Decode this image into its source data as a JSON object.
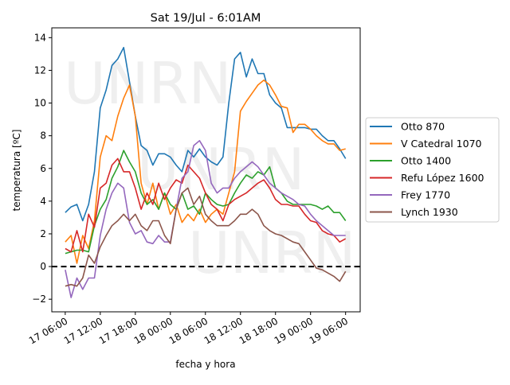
{
  "chart_data": {
    "type": "line",
    "title": "Sat 19/Jul - 6:01AM",
    "xlabel": "fecha y hora",
    "ylabel": "temperatura [ºC]",
    "watermark": "UNRN",
    "x_unit": "hours since 17 06:00",
    "xlim": [
      -2.3,
      50.5
    ],
    "ylim": [
      -2.77,
      14.6
    ],
    "x_ticks": [
      {
        "value": 0,
        "label": "17 06:00"
      },
      {
        "value": 6,
        "label": "17 12:00"
      },
      {
        "value": 12,
        "label": "17 18:00"
      },
      {
        "value": 18,
        "label": "18 00:00"
      },
      {
        "value": 24,
        "label": "18 06:00"
      },
      {
        "value": 30,
        "label": "18 12:00"
      },
      {
        "value": 36,
        "label": "18 18:00"
      },
      {
        "value": 42,
        "label": "19 00:00"
      },
      {
        "value": 48,
        "label": "19 06:00"
      }
    ],
    "y_ticks": [
      -2,
      0,
      2,
      4,
      6,
      8,
      10,
      12,
      14
    ],
    "reference_line": {
      "y": 0,
      "style": "dashed",
      "color": "#000000"
    },
    "grid": false,
    "legend_placement": "right-outside",
    "x": [
      0,
      1,
      2,
      3,
      4,
      5,
      6,
      7,
      8,
      9,
      10,
      11,
      12,
      13,
      14,
      15,
      16,
      17,
      18,
      19,
      20,
      21,
      22,
      23,
      24,
      25,
      26,
      27,
      28,
      29,
      30,
      31,
      32,
      33,
      34,
      35,
      36,
      37,
      38,
      39,
      40,
      41,
      42,
      43,
      44,
      45,
      46,
      47,
      48
    ],
    "series": [
      {
        "name": "Otto 870",
        "color": "#1f77b4",
        "values": [
          3.3,
          3.65,
          3.8,
          2.8,
          3.8,
          5.8,
          9.7,
          10.8,
          12.3,
          12.7,
          13.4,
          11.3,
          9.2,
          7.4,
          7.1,
          6.2,
          6.9,
          6.9,
          6.7,
          6.2,
          5.8,
          7.1,
          6.7,
          7.2,
          6.7,
          6.4,
          6.2,
          6.7,
          10,
          12.7,
          13.1,
          11.6,
          12.7,
          11.8,
          11.8,
          10.5,
          10,
          9.7,
          8.5,
          8.5,
          8.5,
          8.5,
          8.4,
          8.4,
          8.0,
          7.7,
          7.7,
          7.2,
          6.6
        ]
      },
      {
        "name": "V Catedral 1070",
        "color": "#ff7f0e",
        "values": [
          1.5,
          1.9,
          0.2,
          1.9,
          1.1,
          2.8,
          6.7,
          8.0,
          7.7,
          9.2,
          10.3,
          11.1,
          9.2,
          5.1,
          3.8,
          5.1,
          3.5,
          4.5,
          3.2,
          3.8,
          2.7,
          3.2,
          2.8,
          3.5,
          2.7,
          3.2,
          3.5,
          3.2,
          4.5,
          5.8,
          9.5,
          10.1,
          10.6,
          11.1,
          11.4,
          11.1,
          10.5,
          9.8,
          9.7,
          8.2,
          8.7,
          8.7,
          8.4,
          8.0,
          7.7,
          7.5,
          7.5,
          7.1,
          7.2
        ]
      },
      {
        "name": "Otto 1400",
        "color": "#2ca02c",
        "values": [
          0.8,
          0.9,
          1.0,
          1.0,
          0.9,
          2.5,
          3.5,
          4.1,
          5.4,
          6.1,
          7.1,
          6.4,
          5.8,
          4.5,
          3.8,
          4.1,
          3.5,
          4.5,
          3.8,
          3.5,
          4.5,
          3.5,
          3.7,
          3.2,
          4.5,
          4.1,
          3.8,
          3.7,
          3.8,
          4.5,
          5.1,
          5.6,
          5.4,
          5.8,
          5.6,
          6.1,
          4.8,
          4.5,
          4.0,
          3.8,
          3.8,
          3.8,
          3.8,
          3.7,
          3.5,
          3.7,
          3.3,
          3.3,
          2.8
        ]
      },
      {
        "name": "Refu López 1600",
        "color": "#d62728",
        "values": [
          1.1,
          0.9,
          2.2,
          0.9,
          3.2,
          2.4,
          4.8,
          5.1,
          6.2,
          6.6,
          5.8,
          5.8,
          4.8,
          3.5,
          4.5,
          3.8,
          5.1,
          4.1,
          4.8,
          5.3,
          5.1,
          6.2,
          5.8,
          5.4,
          4.5,
          3.8,
          3.5,
          2.8,
          3.8,
          4.1,
          4.3,
          4.5,
          4.8,
          5.1,
          5.3,
          4.8,
          4.1,
          3.8,
          3.8,
          3.7,
          3.7,
          3.2,
          2.8,
          2.7,
          2.2,
          2.0,
          1.9,
          1.5,
          1.7
        ]
      },
      {
        "name": "Frey 1770",
        "color": "#9467bd",
        "values": [
          -0.2,
          -1.9,
          -0.7,
          -1.4,
          -0.7,
          -0.7,
          1.9,
          3.5,
          4.5,
          5.1,
          4.8,
          2.7,
          2.0,
          2.2,
          1.5,
          1.4,
          1.9,
          1.5,
          1.5,
          3.5,
          5.4,
          5.8,
          7.4,
          7.7,
          7.1,
          5.1,
          4.5,
          4.8,
          4.8,
          5.4,
          5.8,
          6.1,
          6.4,
          6.1,
          5.6,
          5.1,
          4.8,
          4.5,
          4.3,
          4.1,
          3.8,
          3.7,
          3.2,
          2.8,
          2.5,
          2.2,
          1.9,
          1.9,
          1.9
        ]
      },
      {
        "name": "Lynch 1930",
        "color": "#8c564b",
        "values": [
          -1.2,
          -1.1,
          -1.2,
          -0.7,
          0.7,
          0.2,
          1.2,
          1.9,
          2.5,
          2.8,
          3.2,
          2.8,
          3.2,
          2.5,
          2.2,
          2.8,
          2.8,
          1.9,
          1.4,
          3.5,
          4.5,
          4.8,
          3.8,
          4.3,
          3.2,
          2.8,
          2.5,
          2.5,
          2.5,
          2.8,
          3.2,
          3.2,
          3.5,
          3.2,
          2.5,
          2.2,
          2.0,
          1.9,
          1.7,
          1.5,
          1.4,
          0.9,
          0.4,
          -0.1,
          -0.2,
          -0.4,
          -0.6,
          -0.9,
          -0.3
        ]
      }
    ]
  }
}
